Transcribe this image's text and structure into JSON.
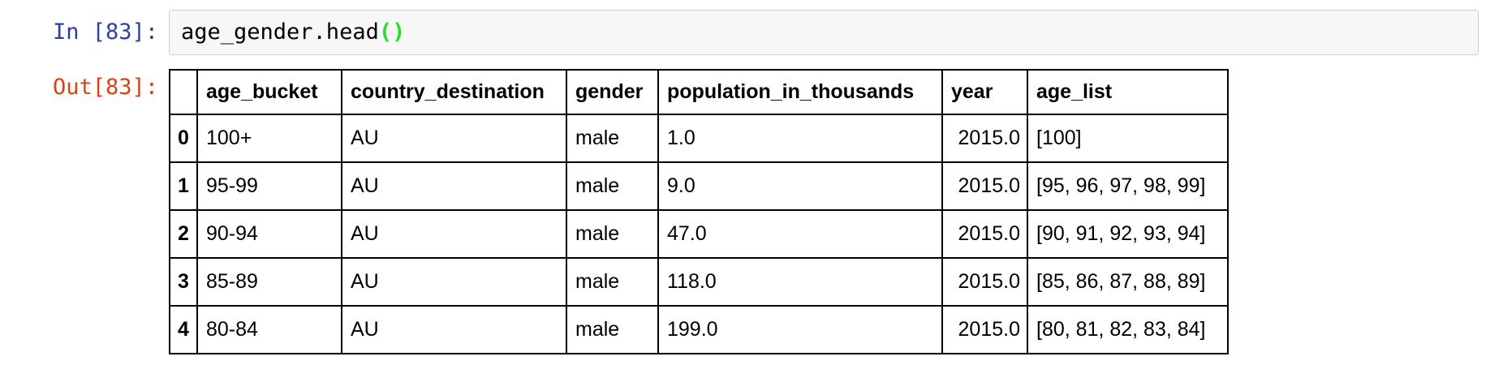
{
  "notebook": {
    "input_prompt": "In [83]:",
    "output_prompt": "Out[83]:",
    "code_text": "age_gender.head",
    "code_brackets": "()",
    "colors": {
      "input_prompt": "#303F9F",
      "output_prompt": "#D84315",
      "matching_bracket_green": "#26DE26",
      "code_cell_background": "#F7F7F7",
      "code_cell_border": "#CFCFCF",
      "table_border": "#000000"
    }
  },
  "table": {
    "headers": [
      "",
      "age_bucket",
      "country_destination",
      "gender",
      "population_in_thousands",
      "year",
      "age_list"
    ],
    "rows": [
      [
        "0",
        "100+",
        "AU",
        "male",
        "1.0",
        "2015.0",
        "[100]"
      ],
      [
        "1",
        "95-99",
        "AU",
        "male",
        "9.0",
        "2015.0",
        "[95, 96, 97, 98, 99]"
      ],
      [
        "2",
        "90-94",
        "AU",
        "male",
        "47.0",
        "2015.0",
        "[90, 91, 92, 93, 94]"
      ],
      [
        "3",
        "85-89",
        "AU",
        "male",
        "118.0",
        "2015.0",
        "[85, 86, 87, 88, 89]"
      ],
      [
        "4",
        "80-84",
        "AU",
        "male",
        "199.0",
        "2015.0",
        "[80, 81, 82, 83, 84]"
      ]
    ]
  }
}
